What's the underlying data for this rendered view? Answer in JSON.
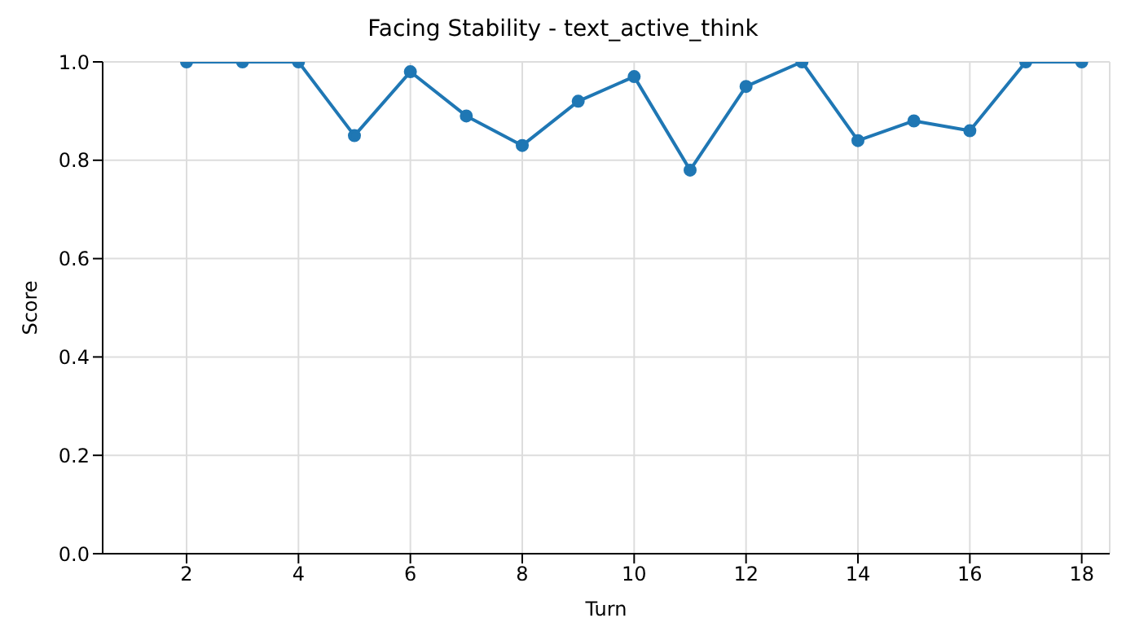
{
  "chart_data": {
    "type": "line",
    "title": "Facing Stability - text_active_think",
    "xlabel": "Turn",
    "ylabel": "Score",
    "x": [
      2,
      3,
      4,
      5,
      6,
      7,
      8,
      9,
      10,
      11,
      12,
      13,
      14,
      15,
      16,
      17,
      18
    ],
    "series": [
      {
        "color": "#1f77b4",
        "values": [
          1.0,
          1.0,
          1.0,
          0.85,
          0.98,
          0.89,
          0.83,
          0.92,
          0.97,
          0.78,
          0.95,
          1.0,
          0.84,
          0.88,
          0.86,
          1.0,
          1.0
        ]
      }
    ],
    "xlim": [
      0.5,
      18.5
    ],
    "xticks": [
      2,
      4,
      6,
      8,
      10,
      12,
      14,
      16,
      18
    ],
    "ylim": [
      0,
      1
    ],
    "yticks": [
      {
        "value": 0,
        "label": "0.0"
      },
      {
        "value": 0.2,
        "label": "0.2"
      },
      {
        "value": 0.4,
        "label": "0.4"
      },
      {
        "value": 0.6,
        "label": "0.6"
      },
      {
        "value": 0.8,
        "label": "0.8"
      },
      {
        "value": 1,
        "label": "1.0"
      }
    ],
    "grid": true,
    "marker": "circle",
    "line_style": "solid"
  }
}
